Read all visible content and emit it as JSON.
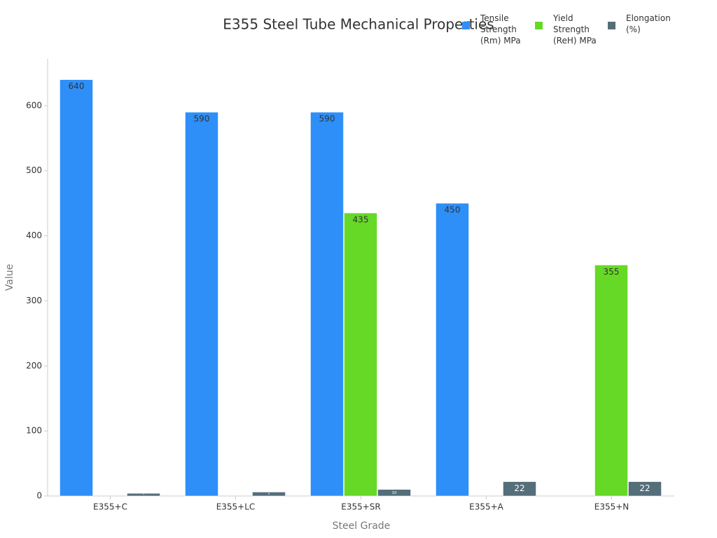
{
  "chart_data": {
    "type": "bar",
    "title": "E355 Steel Tube Mechanical Properties",
    "x_label": "Steel Grade",
    "y_label": "Value",
    "categories": [
      "E355+C",
      "E355+LC",
      "E355+SR",
      "E355+A",
      "E355+N"
    ],
    "series": [
      {
        "name": "Tensile Strength (Rm) MPa",
        "color": "#2e8ff8",
        "values": [
          640,
          590,
          590,
          450,
          null
        ]
      },
      {
        "name": "Yield Strength (ReH) MPa",
        "color": "#66d926",
        "values": [
          null,
          null,
          435,
          null,
          355
        ]
      },
      {
        "name": "Elongation (%)",
        "color": "#546e7a",
        "values": [
          4,
          6,
          10,
          22,
          22
        ]
      }
    ],
    "ylim": [
      0,
      672
    ],
    "yticks": [
      0,
      100,
      200,
      300,
      400,
      500,
      600
    ],
    "grid": false
  }
}
